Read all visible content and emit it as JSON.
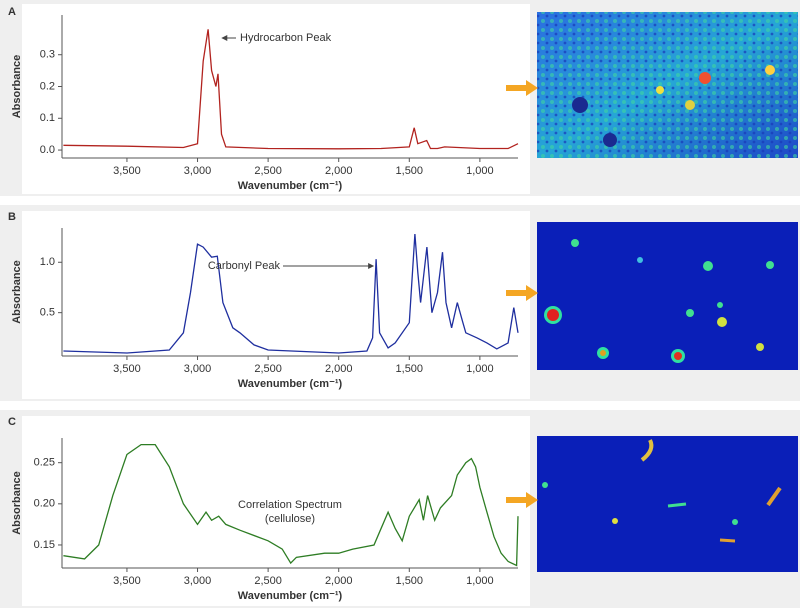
{
  "chart_data": [
    {
      "type": "line",
      "panel": "A",
      "annotation": [
        "Hydrocarbon Peak"
      ],
      "x_label": "Wavenumber (cm⁻¹)",
      "y_label": "Absorbance",
      "color": "#b2231f",
      "x": [
        3950,
        3500,
        3100,
        3000,
        2960,
        2925,
        2900,
        2870,
        2855,
        2830,
        2800,
        2500,
        2000,
        1700,
        1500,
        1465,
        1440,
        1377,
        1350,
        1300,
        1250,
        1000,
        800,
        730
      ],
      "values": [
        0.015,
        0.012,
        0.008,
        0.02,
        0.28,
        0.38,
        0.25,
        0.2,
        0.24,
        0.05,
        0.01,
        0.005,
        0.004,
        0.005,
        0.01,
        0.07,
        0.02,
        0.03,
        0.005,
        0.005,
        0.01,
        0.005,
        0.005,
        0.02
      ],
      "xlim": [
        3960,
        730
      ],
      "xticks": [
        {
          "value": 3500,
          "label": "3,500"
        },
        {
          "value": 3000,
          "label": "3,000"
        },
        {
          "value": 2500,
          "label": "2,500"
        },
        {
          "value": 2000,
          "label": "2,000"
        },
        {
          "value": 1500,
          "label": "1,500"
        },
        {
          "value": 1000,
          "label": "1,000"
        }
      ],
      "ylim": [
        -0.025,
        0.425
      ],
      "yticks": [
        {
          "value": 0,
          "label": "0.0"
        },
        0.1,
        0.2,
        0.3
      ]
    },
    {
      "type": "line",
      "panel": "B",
      "annotation": [
        "Carbonyl Peak"
      ],
      "x_label": "Wavenumber (cm⁻¹)",
      "y_label": "Absorbance",
      "color": "#1f2f9f",
      "x": [
        3950,
        3500,
        3200,
        3100,
        3050,
        3000,
        2960,
        2900,
        2860,
        2820,
        2750,
        2700,
        2600,
        2500,
        2000,
        1800,
        1760,
        1735,
        1710,
        1650,
        1600,
        1500,
        1460,
        1440,
        1420,
        1375,
        1340,
        1300,
        1265,
        1240,
        1200,
        1160,
        1120,
        1100,
        1020,
        950,
        880,
        800,
        760,
        730
      ],
      "values": [
        0.12,
        0.1,
        0.13,
        0.3,
        0.7,
        1.18,
        1.15,
        1.05,
        1.06,
        0.6,
        0.35,
        0.3,
        0.18,
        0.13,
        0.1,
        0.12,
        0.25,
        1.03,
        0.3,
        0.15,
        0.2,
        0.4,
        1.28,
        0.9,
        0.6,
        1.15,
        0.5,
        0.7,
        1.1,
        0.6,
        0.35,
        0.6,
        0.4,
        0.3,
        0.25,
        0.2,
        0.14,
        0.2,
        0.55,
        0.3
      ],
      "xlim": [
        3960,
        730
      ],
      "xticks": [
        {
          "value": 3500,
          "label": "3,500"
        },
        {
          "value": 3000,
          "label": "3,000"
        },
        {
          "value": 2500,
          "label": "2,500"
        },
        {
          "value": 2000,
          "label": "2,000"
        },
        {
          "value": 1500,
          "label": "1,500"
        },
        {
          "value": 1000,
          "label": "1,000"
        }
      ],
      "ylim": [
        0.07,
        1.34
      ],
      "yticks": [
        {
          "value": 1,
          "label": "1.0"
        },
        0.5
      ]
    },
    {
      "type": "line",
      "panel": "C",
      "annotation": [
        "Correlation Spectrum",
        "(cellulose)"
      ],
      "x_label": "Wavenumber (cm⁻¹)",
      "y_label": "Absorbance",
      "color": "#2e7d24",
      "x": [
        3950,
        3800,
        3700,
        3600,
        3500,
        3400,
        3300,
        3200,
        3100,
        3000,
        2940,
        2900,
        2850,
        2800,
        2700,
        2500,
        2400,
        2340,
        2300,
        2100,
        2000,
        1900,
        1750,
        1650,
        1600,
        1550,
        1500,
        1430,
        1400,
        1370,
        1320,
        1280,
        1200,
        1160,
        1100,
        1060,
        1030,
        1000,
        950,
        900,
        850,
        800,
        740,
        730
      ],
      "values": [
        0.137,
        0.133,
        0.15,
        0.21,
        0.26,
        0.272,
        0.272,
        0.245,
        0.2,
        0.175,
        0.19,
        0.18,
        0.185,
        0.175,
        0.168,
        0.155,
        0.145,
        0.128,
        0.135,
        0.14,
        0.14,
        0.145,
        0.15,
        0.19,
        0.17,
        0.155,
        0.185,
        0.205,
        0.18,
        0.21,
        0.18,
        0.195,
        0.21,
        0.235,
        0.25,
        0.255,
        0.245,
        0.22,
        0.19,
        0.16,
        0.14,
        0.13,
        0.125,
        0.185
      ],
      "xlim": [
        3960,
        730
      ],
      "xticks": [
        {
          "value": 3500,
          "label": "3,500"
        },
        {
          "value": 3000,
          "label": "3,000"
        },
        {
          "value": 2500,
          "label": "2,500"
        },
        {
          "value": 2000,
          "label": "2,000"
        },
        {
          "value": 1500,
          "label": "1,500"
        },
        {
          "value": 1000,
          "label": "1,000"
        }
      ],
      "ylim": [
        0.122,
        0.28
      ],
      "yticks": [
        0.15,
        {
          "value": 0.2,
          "label": "0.20"
        },
        0.25
      ]
    }
  ]
}
